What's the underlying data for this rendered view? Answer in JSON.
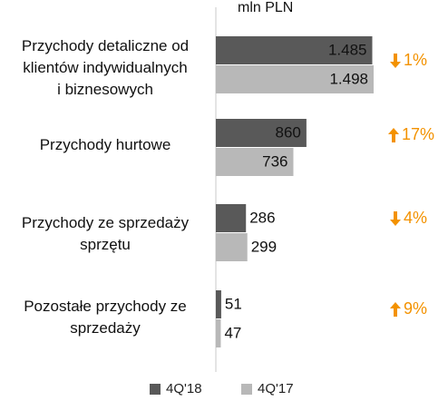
{
  "unit_label": "mln PLN",
  "chart_data": {
    "type": "bar",
    "orientation": "horizontal",
    "categories": [
      "Przychody detaliczne od\nklientów indywidualnych\ni biznesowych",
      "Przychody hurtowe",
      "Przychody ze sprzedaży\nsprzętu",
      "Pozostałe przychody ze\nsprzedaży"
    ],
    "series": [
      {
        "name": "4Q'18",
        "color": "#595959",
        "values": [
          1485,
          860,
          286,
          51
        ],
        "labels": [
          "1.485",
          "860",
          "286",
          "51"
        ]
      },
      {
        "name": "4Q'17",
        "color": "#b8b8b8",
        "values": [
          1498,
          736,
          299,
          47
        ],
        "labels": [
          "1.498",
          "736",
          "299",
          "47"
        ]
      }
    ],
    "changes": [
      {
        "direction": "down",
        "text": "1%"
      },
      {
        "direction": "up",
        "text": "17%"
      },
      {
        "direction": "down",
        "text": "4%"
      },
      {
        "direction": "up",
        "text": "9%"
      }
    ],
    "change_color": "#f39200",
    "legend_position": "bottom",
    "grid": false
  }
}
